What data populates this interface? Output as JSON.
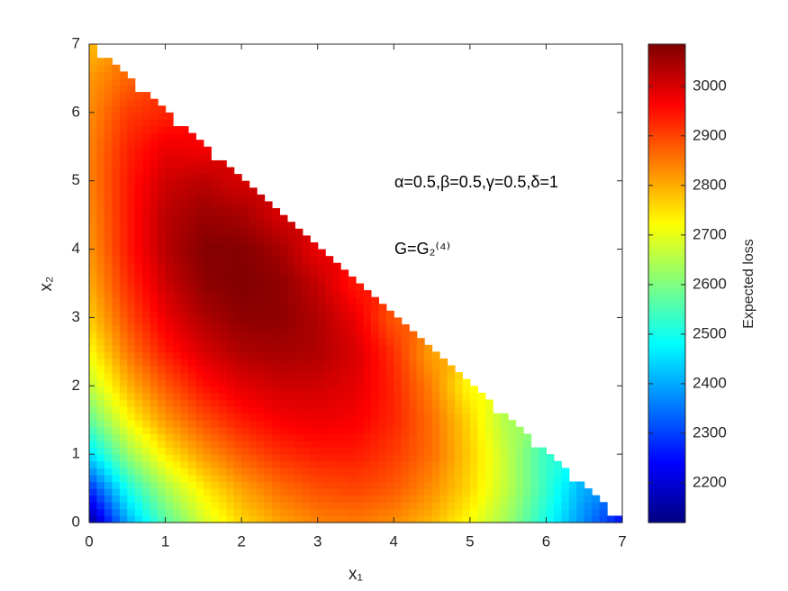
{
  "chart_data": {
    "type": "heatmap",
    "colormap": "jet",
    "xlabel": "x₁",
    "ylabel": "x₂",
    "colorbar_label": "Expected loss",
    "annotations": [
      "α=0.5,β=0.5,γ=0.5,δ=1",
      "G=G₂⁽⁴⁾"
    ],
    "x": [
      0,
      0.5,
      1,
      1.5,
      2,
      2.5,
      3,
      3.5,
      4,
      4.5,
      5,
      5.5,
      6,
      6.5,
      7
    ],
    "y": [
      0,
      0.5,
      1,
      1.5,
      2,
      2.5,
      3,
      3.5,
      4,
      4.5,
      5,
      5.5,
      6,
      6.5,
      7
    ],
    "z": [
      [
        2130,
        2400,
        2560,
        2680,
        2760,
        2810,
        2840,
        2850,
        2830,
        2790,
        2720,
        2630,
        2500,
        2370,
        2250
      ],
      [
        2280,
        2500,
        2640,
        2740,
        2810,
        2860,
        2890,
        2900,
        2880,
        2830,
        2760,
        2660,
        2530,
        2400
      ],
      [
        2450,
        2620,
        2740,
        2820,
        2880,
        2920,
        2940,
        2940,
        2910,
        2860,
        2770,
        2660,
        2530
      ],
      [
        2570,
        2720,
        2820,
        2890,
        2940,
        2970,
        2980,
        2970,
        2930,
        2860,
        2760,
        2640
      ],
      [
        2660,
        2790,
        2880,
        2950,
        2990,
        3010,
        3010,
        2990,
        2930,
        2840,
        2720
      ],
      [
        2720,
        2850,
        2940,
        3000,
        3040,
        3050,
        3040,
        3000,
        2920,
        2810
      ],
      [
        2770,
        2890,
        2980,
        3040,
        3070,
        3070,
        3040,
        2980,
        2880
      ],
      [
        2800,
        2920,
        3010,
        3070,
        3085,
        3070,
        3020,
        2940
      ],
      [
        2820,
        2940,
        3030,
        3080,
        3080,
        3050,
        2980
      ],
      [
        2830,
        2940,
        3030,
        3060,
        3050,
        3000
      ],
      [
        2840,
        2940,
        3010,
        3030,
        3000
      ],
      [
        2840,
        2930,
        2980,
        2970
      ],
      [
        2830,
        2910,
        2930
      ],
      [
        2820,
        2870
      ],
      [
        2790
      ]
    ],
    "xlim": [
      0,
      7
    ],
    "ylim": [
      0,
      7
    ],
    "xticks": [
      0,
      1,
      2,
      3,
      4,
      5,
      6,
      7
    ],
    "yticks": [
      0,
      1,
      2,
      3,
      4,
      5,
      6,
      7
    ],
    "clim": [
      2120,
      3085
    ],
    "cticks": [
      2200,
      2300,
      2400,
      2500,
      2600,
      2700,
      2800,
      2900,
      3000
    ]
  }
}
